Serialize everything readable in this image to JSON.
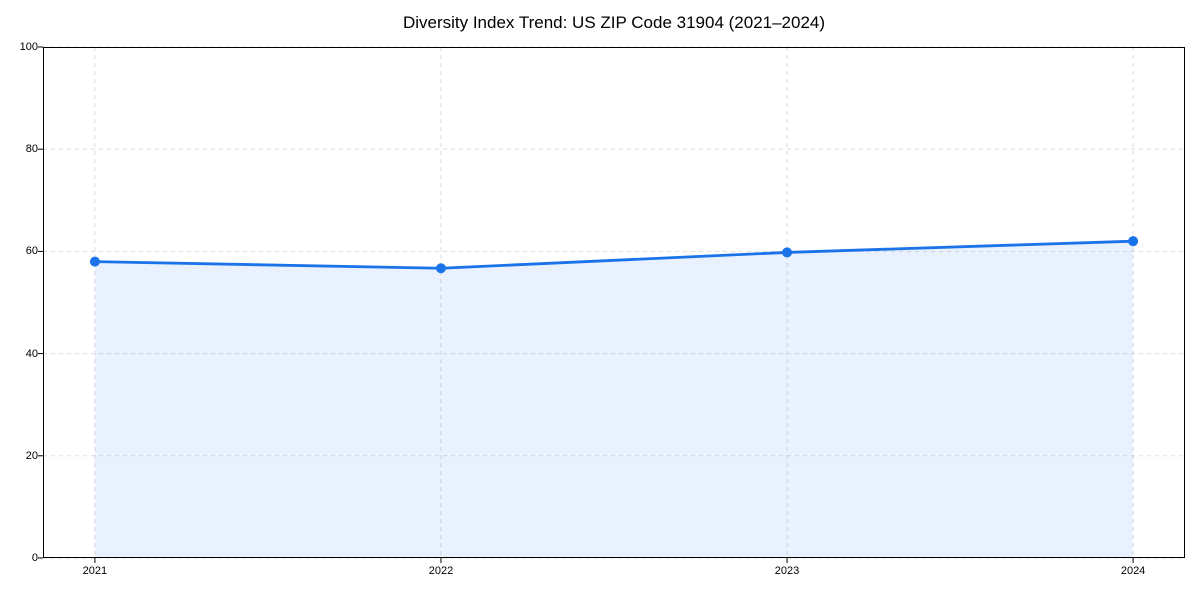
{
  "chart_data": {
    "type": "area",
    "title": "Diversity Index Trend: US ZIP Code 31904 (2021–2024)",
    "categories": [
      "2021",
      "2022",
      "2023",
      "2024"
    ],
    "values": [
      58,
      56.7,
      59.8,
      62
    ],
    "series_name": "Diversity Index",
    "xlabel": "",
    "ylabel": "",
    "ylim": [
      0,
      100
    ],
    "yticks": [
      0,
      20,
      40,
      60,
      80,
      100
    ],
    "ytick_labels": [
      "0",
      "20",
      "40",
      "60",
      "80",
      "100"
    ],
    "grid": "dashed gridlines on both axes",
    "legend": "none",
    "marker": "circle",
    "colors": {
      "line": "#1a73e8",
      "marker": "#1a73e8",
      "fill": "#1a73e8",
      "fill_opacity": 0.1,
      "grid": "#dddddd",
      "axis": "#000000",
      "text": "#000000"
    }
  }
}
